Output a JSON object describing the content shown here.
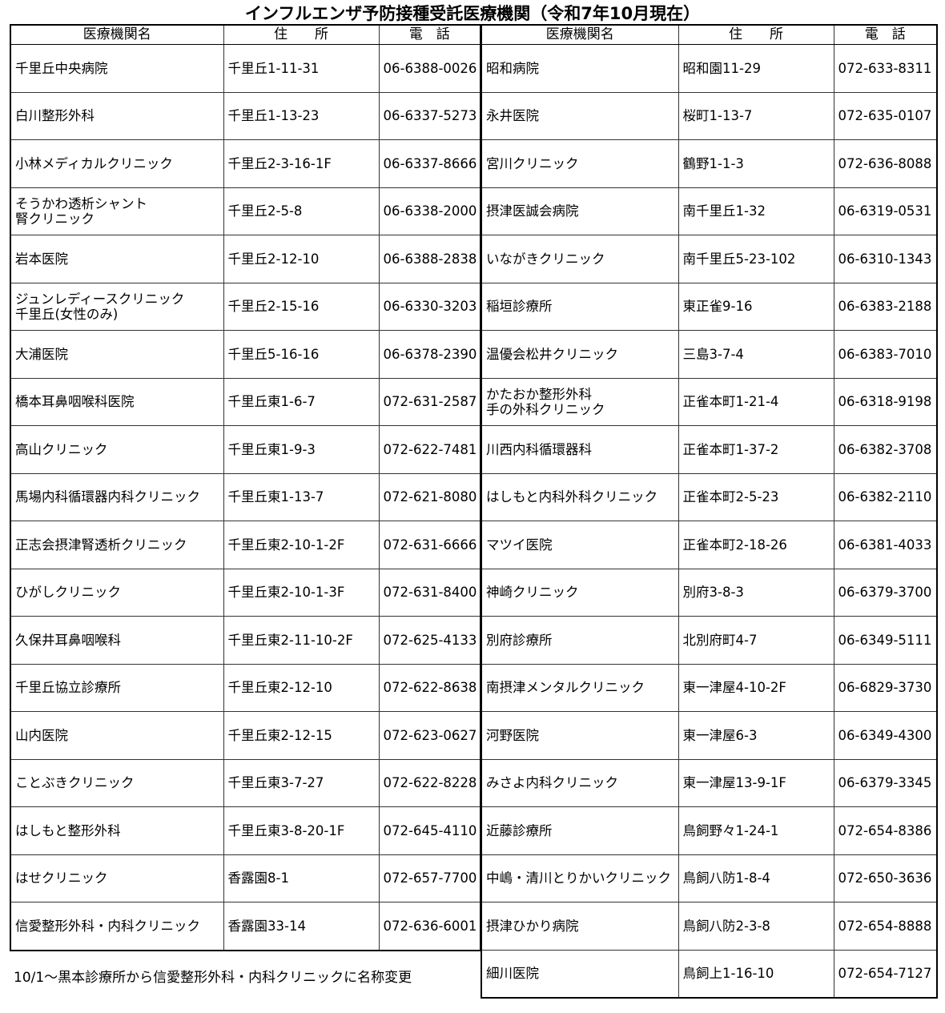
{
  "title": "インフルエンザ予防接種受託医療機関（令和7年10月現在）",
  "headers": {
    "name": "医療機関名",
    "address": "住　　所",
    "phone": "電　話"
  },
  "left": [
    {
      "name": "千里丘中央病院",
      "address": "千里丘1-11-31",
      "phone": "06-6388-0026"
    },
    {
      "name": "白川整形外科",
      "address": "千里丘1-13-23",
      "phone": "06-6337-5273"
    },
    {
      "name": "小林メディカルクリニック",
      "address": "千里丘2-3-16-1F",
      "phone": "06-6337-8666"
    },
    {
      "name": "そうかわ透析シャント\n腎クリニック",
      "address": "千里丘2-5-8",
      "phone": "06-6338-2000"
    },
    {
      "name": "岩本医院",
      "address": "千里丘2-12-10",
      "phone": "06-6388-2838"
    },
    {
      "name": "ジュンレディースクリニック\n千里丘(女性のみ)",
      "address": "千里丘2-15-16",
      "phone": "06-6330-3203"
    },
    {
      "name": "大浦医院",
      "address": "千里丘5-16-16",
      "phone": "06-6378-2390"
    },
    {
      "name": "橋本耳鼻咽喉科医院",
      "address": "千里丘東1-6-7",
      "phone": "072-631-2587"
    },
    {
      "name": "高山クリニック",
      "address": "千里丘東1-9-3",
      "phone": "072-622-7481"
    },
    {
      "name": "馬場内科循環器内科クリニック",
      "address": "千里丘東1-13-7",
      "phone": "072-621-8080"
    },
    {
      "name": "正志会摂津腎透析クリニック",
      "address": "千里丘東2-10-1-2F",
      "phone": "072-631-6666"
    },
    {
      "name": "ひがしクリニック",
      "address": "千里丘東2-10-1-3F",
      "phone": "072-631-8400"
    },
    {
      "name": "久保井耳鼻咽喉科",
      "address": "千里丘東2-11-10-2F",
      "phone": "072-625-4133"
    },
    {
      "name": "千里丘協立診療所",
      "address": "千里丘東2-12-10",
      "phone": "072-622-8638"
    },
    {
      "name": "山内医院",
      "address": "千里丘東2-12-15",
      "phone": "072-623-0627"
    },
    {
      "name": "ことぶきクリニック",
      "address": "千里丘東3-7-27",
      "phone": "072-622-8228"
    },
    {
      "name": "はしもと整形外科",
      "address": "千里丘東3-8-20-1F",
      "phone": "072-645-4110"
    },
    {
      "name": "はせクリニック",
      "address": "香露園8-1",
      "phone": "072-657-7700"
    },
    {
      "name": "信愛整形外科・内科クリニック",
      "address": "香露園33-14",
      "phone": "072-636-6001"
    }
  ],
  "right": [
    {
      "name": "昭和病院",
      "address": "昭和園11-29",
      "phone": "072-633-8311"
    },
    {
      "name": "永井医院",
      "address": "桜町1-13-7",
      "phone": "072-635-0107"
    },
    {
      "name": "宮川クリニック",
      "address": "鶴野1-1-3",
      "phone": "072-636-8088"
    },
    {
      "name": "摂津医誠会病院",
      "address": "南千里丘1-32",
      "phone": "06-6319-0531"
    },
    {
      "name": "いながきクリニック",
      "address": "南千里丘5-23-102",
      "phone": "06-6310-1343"
    },
    {
      "name": "稲垣診療所",
      "address": "東正雀9-16",
      "phone": "06-6383-2188"
    },
    {
      "name": "温優会松井クリニック",
      "address": "三島3-7-4",
      "phone": "06-6383-7010"
    },
    {
      "name": "かたおか整形外科\n手の外科クリニック",
      "address": "正雀本町1-21-4",
      "phone": "06-6318-9198"
    },
    {
      "name": "川西内科循環器科",
      "address": "正雀本町1-37-2",
      "phone": "06-6382-3708"
    },
    {
      "name": "はしもと内科外科クリニック",
      "address": "正雀本町2-5-23",
      "phone": "06-6382-2110"
    },
    {
      "name": "マツイ医院",
      "address": "正雀本町2-18-26",
      "phone": "06-6381-4033"
    },
    {
      "name": "神崎クリニック",
      "address": "別府3-8-3",
      "phone": "06-6379-3700"
    },
    {
      "name": "別府診療所",
      "address": "北別府町4-7",
      "phone": "06-6349-5111"
    },
    {
      "name": "南摂津メンタルクリニック",
      "address": "東一津屋4-10-2F",
      "phone": "06-6829-3730"
    },
    {
      "name": "河野医院",
      "address": "東一津屋6-3",
      "phone": "06-6349-4300"
    },
    {
      "name": "みさよ内科クリニック",
      "address": "東一津屋13-9-1F",
      "phone": "06-6379-3345"
    },
    {
      "name": "近藤診療所",
      "address": "鳥飼野々1-24-1",
      "phone": "072-654-8386"
    },
    {
      "name": "中嶋・清川とりかいクリニック",
      "address": "鳥飼八防1-8-4",
      "phone": "072-650-3636"
    },
    {
      "name": "摂津ひかり病院",
      "address": "鳥飼八防2-3-8",
      "phone": "072-654-8888"
    },
    {
      "name": "細川医院",
      "address": "鳥飼上1-16-10",
      "phone": "072-654-7127"
    }
  ],
  "note": "10/1～黒本診療所から信愛整形外科・内科クリニックに名称変更"
}
